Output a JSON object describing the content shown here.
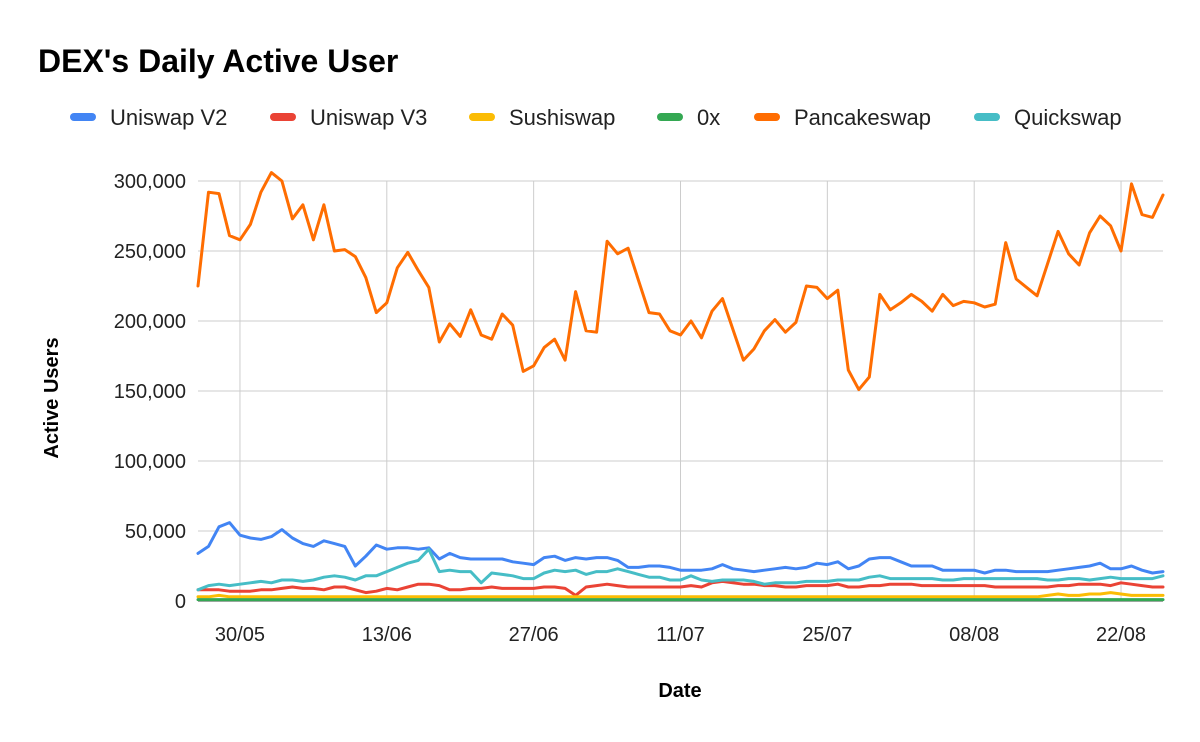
{
  "chart_data": {
    "type": "line",
    "title": "DEX's Daily Active User",
    "xlabel": "Date",
    "ylabel": "Active Users",
    "x_tick_labels": [
      "30/05",
      "13/06",
      "27/06",
      "11/07",
      "25/07",
      "08/08",
      "22/08"
    ],
    "y_tick_labels": [
      "0",
      "50,000",
      "100,000",
      "150,000",
      "200,000",
      "250,000",
      "300,000"
    ],
    "y_ticks": [
      0,
      50000,
      100000,
      150000,
      200000,
      250000,
      300000
    ],
    "ylim": [
      0,
      300000
    ],
    "legend_position": "top",
    "grid": true,
    "series": [
      {
        "name": "Uniswap V2",
        "color": "#4285F4",
        "values": [
          34000,
          39000,
          53000,
          56000,
          47000,
          45000,
          44000,
          46000,
          51000,
          45000,
          41000,
          39000,
          43000,
          41000,
          39000,
          25000,
          32000,
          40000,
          37000,
          38000,
          38000,
          37000,
          38000,
          30000,
          34000,
          31000,
          30000,
          30000,
          30000,
          30000,
          28000,
          27000,
          26000,
          31000,
          32000,
          29000,
          31000,
          30000,
          31000,
          31000,
          29000,
          24000,
          24000,
          25000,
          25000,
          24000,
          22000,
          22000,
          22000,
          23000,
          26000,
          23000,
          22000,
          21000,
          22000,
          23000,
          24000,
          23000,
          24000,
          27000,
          26000,
          28000,
          23000,
          25000,
          30000,
          31000,
          31000,
          28000,
          25000,
          25000,
          25000,
          22000,
          22000,
          22000,
          22000,
          20000,
          22000,
          22000,
          21000,
          21000,
          21000,
          21000,
          22000,
          23000,
          24000,
          25000,
          27000,
          23000,
          23000,
          25000,
          22000,
          20000,
          21000
        ]
      },
      {
        "name": "Uniswap V3",
        "color": "#EA4335",
        "values": [
          8000,
          8000,
          8000,
          7000,
          7000,
          7000,
          8000,
          8000,
          9000,
          10000,
          9000,
          9000,
          8000,
          10000,
          10000,
          8000,
          6000,
          7000,
          9000,
          8000,
          10000,
          12000,
          12000,
          11000,
          8000,
          8000,
          9000,
          9000,
          10000,
          9000,
          9000,
          9000,
          9000,
          10000,
          10000,
          9000,
          4000,
          10000,
          11000,
          12000,
          11000,
          10000,
          10000,
          10000,
          10000,
          10000,
          10000,
          11000,
          10000,
          13000,
          14000,
          13000,
          12000,
          12000,
          11000,
          11000,
          10000,
          10000,
          11000,
          11000,
          11000,
          12000,
          10000,
          10000,
          11000,
          11000,
          12000,
          12000,
          12000,
          11000,
          11000,
          11000,
          11000,
          11000,
          11000,
          11000,
          10000,
          10000,
          10000,
          10000,
          10000,
          10000,
          11000,
          11000,
          12000,
          12000,
          12000,
          11000,
          13000,
          12000,
          11000,
          10000,
          10000
        ]
      },
      {
        "name": "Sushiswap",
        "color": "#FBBC04",
        "values": [
          3000,
          3000,
          4000,
          3000,
          3000,
          3000,
          3000,
          3000,
          3000,
          3000,
          3000,
          3000,
          3000,
          3000,
          3000,
          3000,
          3000,
          3000,
          3000,
          3000,
          3000,
          3000,
          3000,
          3000,
          3000,
          3000,
          3000,
          3000,
          3000,
          3000,
          3000,
          3000,
          3000,
          3000,
          3000,
          3000,
          3000,
          3000,
          3000,
          3000,
          3000,
          3000,
          3000,
          3000,
          3000,
          3000,
          3000,
          3000,
          3000,
          3000,
          3000,
          3000,
          3000,
          3000,
          3000,
          3000,
          3000,
          3000,
          3000,
          3000,
          3000,
          3000,
          3000,
          3000,
          3000,
          3000,
          3000,
          3000,
          3000,
          3000,
          3000,
          3000,
          3000,
          3000,
          3000,
          3000,
          3000,
          3000,
          3000,
          3000,
          3000,
          4000,
          5000,
          4000,
          4000,
          5000,
          5000,
          6000,
          5000,
          4000,
          4000,
          4000,
          4000
        ]
      },
      {
        "name": "0x",
        "color": "#34A853",
        "values": [
          1000,
          1000,
          1000,
          1000,
          1000,
          1000,
          1000,
          1000,
          1000,
          1000,
          1000,
          1000,
          1000,
          1000,
          1000,
          1000,
          1000,
          1000,
          1000,
          1000,
          1000,
          1000,
          1000,
          1000,
          1000,
          1000,
          1000,
          1000,
          1000,
          1000,
          1000,
          1000,
          1000,
          1000,
          1000,
          1000,
          1000,
          1000,
          1000,
          1000,
          1000,
          1000,
          1000,
          1000,
          1000,
          1000,
          1000,
          1000,
          1000,
          1000,
          1000,
          1000,
          1000,
          1000,
          1000,
          1000,
          1000,
          1000,
          1000,
          1000,
          1000,
          1000,
          1000,
          1000,
          1000,
          1000,
          1000,
          1000,
          1000,
          1000,
          1000,
          1000,
          1000,
          1000,
          1000,
          1000,
          1000,
          1000,
          1000,
          1000,
          1000,
          1000,
          1000,
          1000,
          1000,
          1000,
          1000,
          1000,
          1000,
          1000,
          1000,
          1000,
          1000
        ]
      },
      {
        "name": "Pancakeswap",
        "color": "#FF6D01",
        "values": [
          225000,
          292000,
          291000,
          261000,
          258000,
          269000,
          292000,
          306000,
          300000,
          273000,
          283000,
          258000,
          283000,
          250000,
          251000,
          246000,
          231000,
          206000,
          213000,
          238000,
          249000,
          236000,
          224000,
          185000,
          198000,
          189000,
          208000,
          190000,
          187000,
          205000,
          197000,
          164000,
          168000,
          181000,
          187000,
          172000,
          221000,
          193000,
          192000,
          257000,
          248000,
          252000,
          229000,
          206000,
          205000,
          193000,
          190000,
          200000,
          188000,
          207000,
          216000,
          194000,
          172000,
          180000,
          193000,
          201000,
          192000,
          199000,
          225000,
          224000,
          216000,
          222000,
          165000,
          151000,
          160000,
          219000,
          208000,
          213000,
          219000,
          214000,
          207000,
          219000,
          211000,
          214000,
          213000,
          210000,
          212000,
          256000,
          230000,
          224000,
          218000,
          241000,
          264000,
          248000,
          240000,
          263000,
          275000,
          268000,
          250000,
          298000,
          276000,
          274000,
          290000
        ]
      },
      {
        "name": "Quickswap",
        "color": "#46BDC6",
        "values": [
          8000,
          11000,
          12000,
          11000,
          12000,
          13000,
          14000,
          13000,
          15000,
          15000,
          14000,
          15000,
          17000,
          18000,
          17000,
          15000,
          18000,
          18000,
          21000,
          24000,
          27000,
          29000,
          37000,
          21000,
          22000,
          21000,
          21000,
          13000,
          20000,
          19000,
          18000,
          16000,
          16000,
          20000,
          22000,
          21000,
          22000,
          19000,
          21000,
          21000,
          23000,
          21000,
          19000,
          17000,
          17000,
          15000,
          15000,
          18000,
          15000,
          14000,
          15000,
          15000,
          15000,
          14000,
          12000,
          13000,
          13000,
          13000,
          14000,
          14000,
          14000,
          15000,
          15000,
          15000,
          17000,
          18000,
          16000,
          16000,
          16000,
          16000,
          16000,
          15000,
          15000,
          16000,
          16000,
          16000,
          16000,
          16000,
          16000,
          16000,
          16000,
          15000,
          15000,
          16000,
          16000,
          15000,
          16000,
          17000,
          16000,
          16000,
          16000,
          16000,
          18000
        ]
      }
    ]
  }
}
